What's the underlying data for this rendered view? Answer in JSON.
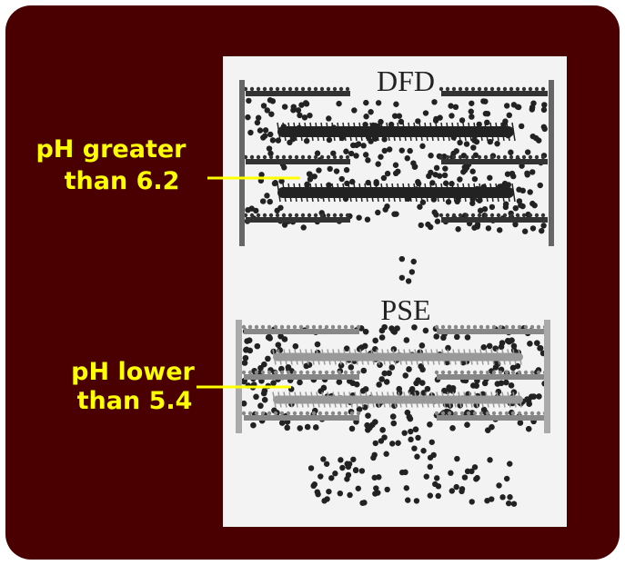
{
  "diagram": {
    "top": {
      "title": "DFD",
      "label_lines": [
        "pH greater",
        "than 6.2"
      ]
    },
    "bottom": {
      "title": "PSE",
      "label_lines": [
        "pH lower",
        "than 5.4"
      ]
    }
  }
}
